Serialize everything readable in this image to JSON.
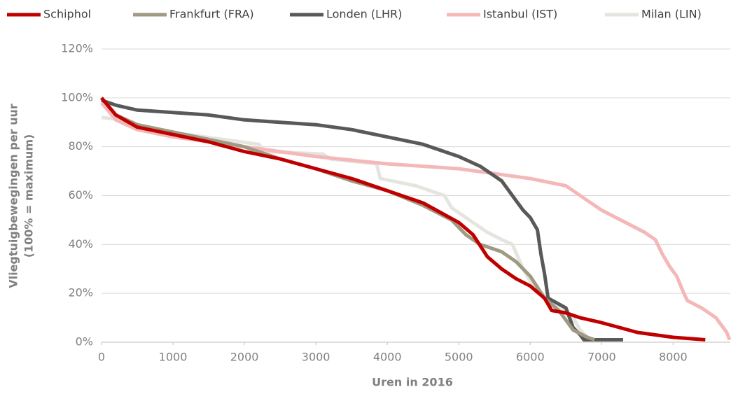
{
  "chart_data": {
    "type": "line",
    "xlabel": "Uren in 2016",
    "ylabel": [
      "Vliegtuigbewegingen per uur",
      "(100% = maximum)"
    ],
    "xlim": [
      0,
      8800
    ],
    "xticks": [
      0,
      1000,
      2000,
      3000,
      4000,
      5000,
      6000,
      7000,
      8000
    ],
    "ylim": [
      0,
      120
    ],
    "yticks": [
      {
        "value": 0,
        "label": "0%"
      },
      {
        "value": 20,
        "label": "20%"
      },
      {
        "value": 40,
        "label": "40%"
      },
      {
        "value": 60,
        "label": "60%"
      },
      {
        "value": 80,
        "label": "80%"
      },
      {
        "value": 100,
        "label": "100%"
      },
      {
        "value": 120,
        "label": "120%"
      }
    ],
    "grid": true,
    "legend": "top",
    "series": [
      {
        "name": "Schiphol",
        "color": "#c00000",
        "x": [
          0,
          200,
          500,
          1000,
          1500,
          2000,
          2500,
          3000,
          3500,
          4000,
          4500,
          5000,
          5200,
          5400,
          5600,
          5800,
          6000,
          6200,
          6300,
          6500,
          6700,
          7000,
          7500,
          8000,
          8450
        ],
        "values": [
          100,
          93,
          88,
          85,
          82,
          78,
          75,
          71,
          67,
          62,
          57,
          49,
          44,
          35,
          30,
          26,
          23,
          18,
          13,
          12,
          10,
          8,
          4,
          2,
          1
        ]
      },
      {
        "name": "Frankfurt (FRA)",
        "color": "#a09a82",
        "x": [
          0,
          200,
          500,
          1000,
          1500,
          2000,
          2500,
          3000,
          3500,
          4000,
          4500,
          4900,
          5100,
          5300,
          5600,
          5800,
          6000,
          6200,
          6400,
          6600,
          6800,
          6900
        ],
        "values": [
          100,
          93,
          89,
          86,
          83,
          80,
          75,
          71,
          66,
          62,
          56,
          50,
          44,
          40,
          37,
          33,
          27,
          18,
          13,
          5,
          2,
          1
        ]
      },
      {
        "name": "Londen (LHR)",
        "color": "#595959",
        "x": [
          0,
          200,
          500,
          1000,
          1500,
          2000,
          2500,
          3000,
          3500,
          4000,
          4500,
          5000,
          5300,
          5600,
          5800,
          5900,
          6000,
          6100,
          6150,
          6200,
          6250,
          6500,
          6600,
          6700,
          6750,
          7300
        ],
        "values": [
          99,
          97,
          95,
          94,
          93,
          91,
          90,
          89,
          87,
          84,
          81,
          76,
          72,
          66,
          58,
          54,
          51,
          46,
          36,
          28,
          18,
          14,
          6,
          3,
          1,
          1
        ]
      },
      {
        "name": "Istanbul (IST)",
        "color": "#f4b8b8",
        "x": [
          0,
          200,
          500,
          1000,
          2000,
          3000,
          4000,
          5000,
          5500,
          6000,
          6500,
          6800,
          7000,
          7400,
          7600,
          7750,
          7850,
          7950,
          8050,
          8150,
          8200,
          8400,
          8600,
          8750,
          8790
        ],
        "values": [
          98,
          91,
          87,
          84,
          80,
          76,
          73,
          71,
          69,
          67,
          64,
          58,
          54,
          48,
          45,
          42,
          36,
          31,
          27,
          20,
          17,
          14,
          10,
          4,
          1
        ]
      },
      {
        "name": "Milan (LIN)",
        "color": "#e5e5e0",
        "x": [
          0,
          300,
          500,
          1200,
          2200,
          2300,
          3100,
          3200,
          3850,
          3900,
          4400,
          4800,
          4900,
          5200,
          5400,
          5600,
          5750,
          5900,
          6000,
          6200,
          6400,
          6600,
          6700,
          6800
        ],
        "values": [
          92,
          91,
          87,
          85,
          81,
          78,
          77,
          75,
          73,
          67,
          64,
          60,
          55,
          49,
          45,
          42,
          40,
          30,
          25,
          18,
          15,
          10,
          5,
          2
        ]
      }
    ]
  }
}
